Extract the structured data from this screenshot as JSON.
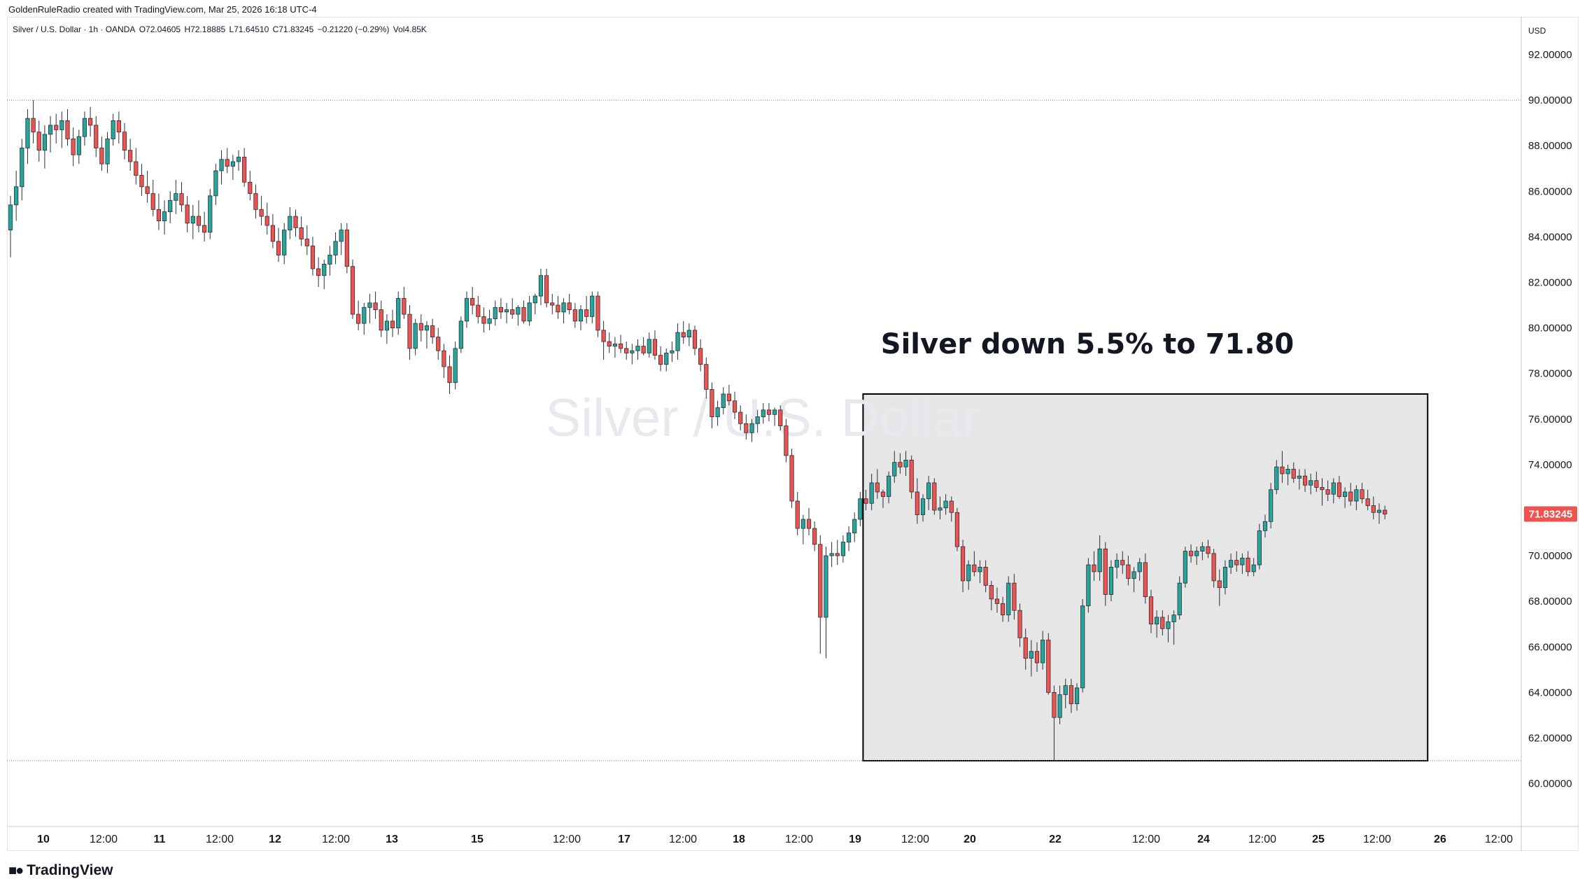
{
  "header": {
    "attribution": "GoldenRuleRadio created with TradingView.com, Mar 25, 2026 16:18 UTC-4"
  },
  "legend": {
    "symbol": "Silver / U.S. Dollar · 1h · OANDA",
    "open": "O72.04605",
    "high": "H72.18885",
    "low": "L71.64510",
    "close": "C71.83245",
    "change": "−0.21220 (−0.29%)",
    "volume": "Vol4.85K"
  },
  "watermark": "Silver / U.S. Dollar",
  "annotation": "Silver down 5.5% to 71.80",
  "price_axis": {
    "currency": "USD",
    "last_price": "71.83245"
  },
  "footer": {
    "logo_text": "TradingView",
    "logo_icon": "tradingview-logo-icon"
  },
  "colors": {
    "up": "#22ab94",
    "down": "#f23645",
    "up_body": "#26a69a",
    "down_body": "#ef5350",
    "last_price_bg": "#ef5350",
    "box_fill": "#e6e6e6"
  },
  "chart_data": {
    "type": "candlestick",
    "y_ticks": [
      "92.00000",
      "90.00000",
      "88.00000",
      "86.00000",
      "84.00000",
      "82.00000",
      "80.00000",
      "78.00000",
      "76.00000",
      "74.00000",
      "72.00000",
      "70.00000",
      "68.00000",
      "66.00000",
      "64.00000",
      "62.00000",
      "60.00000"
    ],
    "ylim": [
      59.5,
      92.5
    ],
    "x_tick_labels": [
      "10",
      "12:00",
      "11",
      "12:00",
      "12",
      "12:00",
      "13",
      "15",
      "12:00",
      "17",
      "12:00",
      "18",
      "12:00",
      "19",
      "12:00",
      "20",
      "22",
      "12:00",
      "24",
      "12:00",
      "25",
      "12:00",
      "26",
      "12:00"
    ],
    "horizontal_lines": [
      90.0,
      61.0
    ],
    "highlight_box": {
      "price_top": 77.1,
      "price_bottom": 61.0,
      "bar_start": 149.5,
      "bar_end": 248.5
    },
    "candles": [
      [
        84.3,
        85.8,
        83.1,
        85.4
      ],
      [
        85.4,
        86.9,
        84.7,
        86.2
      ],
      [
        86.2,
        88.3,
        85.6,
        87.9
      ],
      [
        87.9,
        89.6,
        87.2,
        89.2
      ],
      [
        89.2,
        90.0,
        88.1,
        88.6
      ],
      [
        88.6,
        89.1,
        87.3,
        87.8
      ],
      [
        87.8,
        88.9,
        87.0,
        88.5
      ],
      [
        88.5,
        89.3,
        87.7,
        88.9
      ],
      [
        88.9,
        89.4,
        88.1,
        88.7
      ],
      [
        88.7,
        89.5,
        87.9,
        89.1
      ],
      [
        89.1,
        89.6,
        88.0,
        88.3
      ],
      [
        88.3,
        88.8,
        87.1,
        87.6
      ],
      [
        87.6,
        88.7,
        87.2,
        88.4
      ],
      [
        88.4,
        89.5,
        88.0,
        89.2
      ],
      [
        89.2,
        89.7,
        88.4,
        88.9
      ],
      [
        88.9,
        89.3,
        87.5,
        87.9
      ],
      [
        87.9,
        88.4,
        86.9,
        87.2
      ],
      [
        87.2,
        88.6,
        86.8,
        88.3
      ],
      [
        88.3,
        89.4,
        88.0,
        89.1
      ],
      [
        89.1,
        89.5,
        88.1,
        88.6
      ],
      [
        88.6,
        89.0,
        87.4,
        87.8
      ],
      [
        87.8,
        88.3,
        86.9,
        87.3
      ],
      [
        87.3,
        87.9,
        86.3,
        86.7
      ],
      [
        86.7,
        87.2,
        85.8,
        86.2
      ],
      [
        86.2,
        86.9,
        85.5,
        85.9
      ],
      [
        85.9,
        86.5,
        84.9,
        85.2
      ],
      [
        85.2,
        85.9,
        84.3,
        84.7
      ],
      [
        84.7,
        85.6,
        84.1,
        85.1
      ],
      [
        85.1,
        86.0,
        84.6,
        85.6
      ],
      [
        85.6,
        86.5,
        85.0,
        85.9
      ],
      [
        85.9,
        86.4,
        85.1,
        85.4
      ],
      [
        85.4,
        85.8,
        84.2,
        84.6
      ],
      [
        84.6,
        85.4,
        83.9,
        84.9
      ],
      [
        84.9,
        85.6,
        84.2,
        84.5
      ],
      [
        84.5,
        85.1,
        83.8,
        84.2
      ],
      [
        84.2,
        86.1,
        83.9,
        85.8
      ],
      [
        85.8,
        87.2,
        85.4,
        86.9
      ],
      [
        86.9,
        87.8,
        86.3,
        87.4
      ],
      [
        87.4,
        87.9,
        86.8,
        87.1
      ],
      [
        87.1,
        87.6,
        86.5,
        87.3
      ],
      [
        87.3,
        87.8,
        86.9,
        87.5
      ],
      [
        87.5,
        87.9,
        86.2,
        86.4
      ],
      [
        86.4,
        86.9,
        85.6,
        85.9
      ],
      [
        85.9,
        86.3,
        84.8,
        85.2
      ],
      [
        85.2,
        85.8,
        84.5,
        84.9
      ],
      [
        84.9,
        85.5,
        84.1,
        84.5
      ],
      [
        84.5,
        85.0,
        83.5,
        83.8
      ],
      [
        83.8,
        84.4,
        82.9,
        83.2
      ],
      [
        83.2,
        84.6,
        82.8,
        84.3
      ],
      [
        84.3,
        85.3,
        83.9,
        84.9
      ],
      [
        84.9,
        85.2,
        84.0,
        84.4
      ],
      [
        84.4,
        84.9,
        83.6,
        83.9
      ],
      [
        83.9,
        84.5,
        83.2,
        83.6
      ],
      [
        83.6,
        84.0,
        82.3,
        82.6
      ],
      [
        82.6,
        83.1,
        81.8,
        82.3
      ],
      [
        82.3,
        83.0,
        81.7,
        82.8
      ],
      [
        82.8,
        83.6,
        82.3,
        83.2
      ],
      [
        83.2,
        84.2,
        82.8,
        83.8
      ],
      [
        83.8,
        84.6,
        83.2,
        84.3
      ],
      [
        84.3,
        84.6,
        82.4,
        82.7
      ],
      [
        82.7,
        83.0,
        80.4,
        80.6
      ],
      [
        80.6,
        81.2,
        79.9,
        80.2
      ],
      [
        80.2,
        81.1,
        79.7,
        80.9
      ],
      [
        80.9,
        81.5,
        80.2,
        81.1
      ],
      [
        81.1,
        81.6,
        80.4,
        80.8
      ],
      [
        80.8,
        81.2,
        79.6,
        79.9
      ],
      [
        79.9,
        80.6,
        79.3,
        80.3
      ],
      [
        80.3,
        80.8,
        79.6,
        80.0
      ],
      [
        80.0,
        81.6,
        79.7,
        81.3
      ],
      [
        81.3,
        81.8,
        80.4,
        80.6
      ],
      [
        80.6,
        81.0,
        78.6,
        79.1
      ],
      [
        79.1,
        80.4,
        78.8,
        80.2
      ],
      [
        80.2,
        80.6,
        79.4,
        79.9
      ],
      [
        79.9,
        80.3,
        79.1,
        80.1
      ],
      [
        80.1,
        80.4,
        79.3,
        79.6
      ],
      [
        79.6,
        80.0,
        78.6,
        79.0
      ],
      [
        79.0,
        79.3,
        77.8,
        78.3
      ],
      [
        78.3,
        78.8,
        77.1,
        77.6
      ],
      [
        77.6,
        79.4,
        77.3,
        79.1
      ],
      [
        79.1,
        80.5,
        78.9,
        80.3
      ],
      [
        80.3,
        81.6,
        80.0,
        81.3
      ],
      [
        81.3,
        81.8,
        80.6,
        81.0
      ],
      [
        81.0,
        81.4,
        80.2,
        80.5
      ],
      [
        80.5,
        80.9,
        79.8,
        80.2
      ],
      [
        80.2,
        80.8,
        79.9,
        80.4
      ],
      [
        80.4,
        81.2,
        80.1,
        80.9
      ],
      [
        80.9,
        81.3,
        80.4,
        80.7
      ],
      [
        80.7,
        81.1,
        80.2,
        80.8
      ],
      [
        80.8,
        81.3,
        80.4,
        80.6
      ],
      [
        80.6,
        81.0,
        80.1,
        80.9
      ],
      [
        80.9,
        81.2,
        80.2,
        80.3
      ],
      [
        80.3,
        81.4,
        80.1,
        81.1
      ],
      [
        81.1,
        81.5,
        80.6,
        81.4
      ],
      [
        81.4,
        82.6,
        81.0,
        82.3
      ],
      [
        82.3,
        82.6,
        80.9,
        81.1
      ],
      [
        81.1,
        81.5,
        80.6,
        81.0
      ],
      [
        81.0,
        81.4,
        80.4,
        80.7
      ],
      [
        80.7,
        81.3,
        80.2,
        81.1
      ],
      [
        81.1,
        81.5,
        80.6,
        80.8
      ],
      [
        80.8,
        81.1,
        80.0,
        80.3
      ],
      [
        80.3,
        81.0,
        79.9,
        80.8
      ],
      [
        80.8,
        81.4,
        80.2,
        80.5
      ],
      [
        80.5,
        81.6,
        80.2,
        81.4
      ],
      [
        81.4,
        81.6,
        79.6,
        79.9
      ],
      [
        79.9,
        80.3,
        78.6,
        79.4
      ],
      [
        79.4,
        79.8,
        78.9,
        79.2
      ],
      [
        79.2,
        79.6,
        78.7,
        79.3
      ],
      [
        79.3,
        79.7,
        78.9,
        79.1
      ],
      [
        79.1,
        79.4,
        78.6,
        78.9
      ],
      [
        78.9,
        79.3,
        78.4,
        79.0
      ],
      [
        79.0,
        79.5,
        78.6,
        79.2
      ],
      [
        79.2,
        79.6,
        78.8,
        78.9
      ],
      [
        78.9,
        79.8,
        78.7,
        79.5
      ],
      [
        79.5,
        79.9,
        78.6,
        78.8
      ],
      [
        78.8,
        79.2,
        78.1,
        78.4
      ],
      [
        78.4,
        79.1,
        78.1,
        78.9
      ],
      [
        78.9,
        79.4,
        78.5,
        79.0
      ],
      [
        79.0,
        80.2,
        78.6,
        79.8
      ],
      [
        79.8,
        80.3,
        79.3,
        79.6
      ],
      [
        79.6,
        80.2,
        79.2,
        79.9
      ],
      [
        79.9,
        80.1,
        78.8,
        79.1
      ],
      [
        79.1,
        79.5,
        78.1,
        78.4
      ],
      [
        78.4,
        78.7,
        76.9,
        77.3
      ],
      [
        77.3,
        77.6,
        75.6,
        76.1
      ],
      [
        76.1,
        76.8,
        75.7,
        76.5
      ],
      [
        76.5,
        77.4,
        76.2,
        77.1
      ],
      [
        77.1,
        77.5,
        76.6,
        76.8
      ],
      [
        76.8,
        77.2,
        76.0,
        76.3
      ],
      [
        76.3,
        76.6,
        75.5,
        75.8
      ],
      [
        75.8,
        76.2,
        75.1,
        75.4
      ],
      [
        75.4,
        76.0,
        75.0,
        75.8
      ],
      [
        75.8,
        76.4,
        75.4,
        76.1
      ],
      [
        76.1,
        76.7,
        75.8,
        76.4
      ],
      [
        76.4,
        76.7,
        75.9,
        76.2
      ],
      [
        76.2,
        76.5,
        75.7,
        76.4
      ],
      [
        76.4,
        76.6,
        75.5,
        75.7
      ],
      [
        75.7,
        76.0,
        74.1,
        74.4
      ],
      [
        74.4,
        74.7,
        72.1,
        72.4
      ],
      [
        72.4,
        72.8,
        70.9,
        71.2
      ],
      [
        71.2,
        71.8,
        70.5,
        71.6
      ],
      [
        71.6,
        72.1,
        70.9,
        71.2
      ],
      [
        71.2,
        71.5,
        70.2,
        70.5
      ],
      [
        70.5,
        70.9,
        65.7,
        67.3
      ],
      [
        67.3,
        70.4,
        65.5,
        70.0
      ],
      [
        70.0,
        70.6,
        69.5,
        70.1
      ],
      [
        70.1,
        70.7,
        69.6,
        70.0
      ],
      [
        70.0,
        70.9,
        69.7,
        70.6
      ],
      [
        70.6,
        71.3,
        70.2,
        71.0
      ],
      [
        71.0,
        71.9,
        70.6,
        71.6
      ],
      [
        71.6,
        72.8,
        71.3,
        72.5
      ],
      [
        72.5,
        72.9,
        72.0,
        72.3
      ],
      [
        72.3,
        73.6,
        72.0,
        73.2
      ],
      [
        73.2,
        73.8,
        72.5,
        72.8
      ],
      [
        72.8,
        72.9,
        72.1,
        72.6
      ],
      [
        72.6,
        73.7,
        72.3,
        73.5
      ],
      [
        73.5,
        74.6,
        73.2,
        74.1
      ],
      [
        74.1,
        74.5,
        73.6,
        73.9
      ],
      [
        73.9,
        74.6,
        73.5,
        74.2
      ],
      [
        74.2,
        74.4,
        72.5,
        72.8
      ],
      [
        72.8,
        73.4,
        71.4,
        71.8
      ],
      [
        71.8,
        72.7,
        71.5,
        72.5
      ],
      [
        72.5,
        73.5,
        72.0,
        73.2
      ],
      [
        73.2,
        73.4,
        71.8,
        72.0
      ],
      [
        72.0,
        72.6,
        71.6,
        72.1
      ],
      [
        72.1,
        72.7,
        71.8,
        72.4
      ],
      [
        72.4,
        72.6,
        71.5,
        71.9
      ],
      [
        71.9,
        72.1,
        70.2,
        70.4
      ],
      [
        70.4,
        70.7,
        68.4,
        68.9
      ],
      [
        68.9,
        69.8,
        68.5,
        69.6
      ],
      [
        69.6,
        70.2,
        69.1,
        69.3
      ],
      [
        69.3,
        69.8,
        68.8,
        69.5
      ],
      [
        69.5,
        69.8,
        68.4,
        68.7
      ],
      [
        68.7,
        68.9,
        67.6,
        68.1
      ],
      [
        68.1,
        68.6,
        67.5,
        67.9
      ],
      [
        67.9,
        68.2,
        67.1,
        67.4
      ],
      [
        67.4,
        69.1,
        67.1,
        68.8
      ],
      [
        68.8,
        69.2,
        67.2,
        67.6
      ],
      [
        67.6,
        67.9,
        66.0,
        66.4
      ],
      [
        66.4,
        66.8,
        65.0,
        65.5
      ],
      [
        65.5,
        66.3,
        64.7,
        65.8
      ],
      [
        65.8,
        66.2,
        64.9,
        65.3
      ],
      [
        65.3,
        66.7,
        65.0,
        66.3
      ],
      [
        66.3,
        66.6,
        63.9,
        64.0
      ],
      [
        64.0,
        64.3,
        61.0,
        62.9
      ],
      [
        62.9,
        64.3,
        62.6,
        63.9
      ],
      [
        63.9,
        64.6,
        63.3,
        64.3
      ],
      [
        64.3,
        64.6,
        63.1,
        63.5
      ],
      [
        63.5,
        64.4,
        63.2,
        64.2
      ],
      [
        64.2,
        68.1,
        64.0,
        67.8
      ],
      [
        67.8,
        69.9,
        67.5,
        69.6
      ],
      [
        69.6,
        70.2,
        68.9,
        69.3
      ],
      [
        69.3,
        70.9,
        68.9,
        70.3
      ],
      [
        70.3,
        70.6,
        67.8,
        68.3
      ],
      [
        68.3,
        69.8,
        68.0,
        69.5
      ],
      [
        69.5,
        70.1,
        69.0,
        69.8
      ],
      [
        69.8,
        70.2,
        69.2,
        69.6
      ],
      [
        69.6,
        70.0,
        68.7,
        69.0
      ],
      [
        69.0,
        69.5,
        68.4,
        69.3
      ],
      [
        69.3,
        69.9,
        68.9,
        69.7
      ],
      [
        69.7,
        70.1,
        67.9,
        68.2
      ],
      [
        68.2,
        68.5,
        66.6,
        67.0
      ],
      [
        67.0,
        67.6,
        66.4,
        67.3
      ],
      [
        67.3,
        67.6,
        66.5,
        66.8
      ],
      [
        66.8,
        67.4,
        66.2,
        67.1
      ],
      [
        67.1,
        67.6,
        66.1,
        67.4
      ],
      [
        67.4,
        69.1,
        67.2,
        68.8
      ],
      [
        68.8,
        70.4,
        68.6,
        70.2
      ],
      [
        70.2,
        70.5,
        69.7,
        70.0
      ],
      [
        70.0,
        70.4,
        69.6,
        70.2
      ],
      [
        70.2,
        70.6,
        69.8,
        70.4
      ],
      [
        70.4,
        70.7,
        69.9,
        70.1
      ],
      [
        70.1,
        70.3,
        68.6,
        68.9
      ],
      [
        68.9,
        69.4,
        67.8,
        68.6
      ],
      [
        68.6,
        69.8,
        68.3,
        69.5
      ],
      [
        69.5,
        70.1,
        69.2,
        69.8
      ],
      [
        69.8,
        70.2,
        69.3,
        69.6
      ],
      [
        69.6,
        70.1,
        69.2,
        69.9
      ],
      [
        69.9,
        70.2,
        69.1,
        69.3
      ],
      [
        69.3,
        69.9,
        69.1,
        69.6
      ],
      [
        69.6,
        71.4,
        69.4,
        71.1
      ],
      [
        71.1,
        71.8,
        70.8,
        71.5
      ],
      [
        71.5,
        73.2,
        71.2,
        72.9
      ],
      [
        72.9,
        74.2,
        72.7,
        73.9
      ],
      [
        73.9,
        74.6,
        73.2,
        73.6
      ],
      [
        73.6,
        74.0,
        73.1,
        73.8
      ],
      [
        73.8,
        74.1,
        73.2,
        73.4
      ],
      [
        73.4,
        73.8,
        72.9,
        73.5
      ],
      [
        73.5,
        73.8,
        72.8,
        73.1
      ],
      [
        73.1,
        73.6,
        72.7,
        73.3
      ],
      [
        73.3,
        73.7,
        72.8,
        73.0
      ],
      [
        73.0,
        73.4,
        72.2,
        72.9
      ],
      [
        72.9,
        73.3,
        72.4,
        72.7
      ],
      [
        72.7,
        73.4,
        72.3,
        73.2
      ],
      [
        73.2,
        73.5,
        72.5,
        72.6
      ],
      [
        72.6,
        73.0,
        72.1,
        72.8
      ],
      [
        72.8,
        73.2,
        72.2,
        72.4
      ],
      [
        72.4,
        73.1,
        72.0,
        72.9
      ],
      [
        72.9,
        73.2,
        72.3,
        72.5
      ],
      [
        72.5,
        72.9,
        72.0,
        72.2
      ],
      [
        72.2,
        72.6,
        71.6,
        71.9
      ],
      [
        71.9,
        72.3,
        71.4,
        72.0
      ],
      [
        72.0,
        72.2,
        71.6,
        71.83
      ]
    ]
  }
}
